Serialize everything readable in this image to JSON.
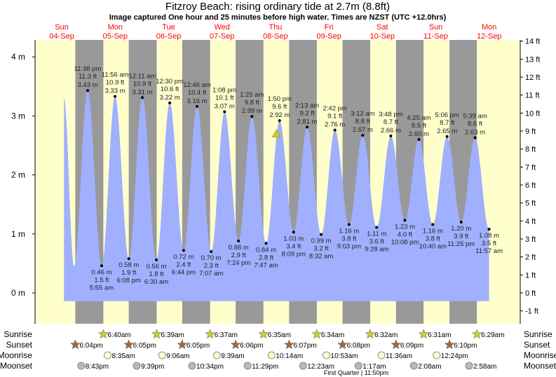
{
  "title": "Fitzroy Beach: rising  ordinary tide at 2.7m (8.8ft)",
  "subtitle": "Image captured One hour and 25 minutes before high water. Times are NZST (UTC +12.0hrs)",
  "days": [
    {
      "dow": "Sun",
      "date": "04-Sep"
    },
    {
      "dow": "Mon",
      "date": "05-Sep"
    },
    {
      "dow": "Tue",
      "date": "06-Sep"
    },
    {
      "dow": "Wed",
      "date": "07-Sep"
    },
    {
      "dow": "Thu",
      "date": "08-Sep"
    },
    {
      "dow": "Fri",
      "date": "09-Sep"
    },
    {
      "dow": "Sat",
      "date": "10-Sep"
    },
    {
      "dow": "Sun",
      "date": "11-Sep"
    },
    {
      "dow": "Mon",
      "date": "12-Sep"
    }
  ],
  "colors": {
    "day": "#ffffcc",
    "night": "#999999",
    "tide": "#a0b0ff",
    "day_labels": "#ff0000",
    "sunrise": "#cccc33",
    "sunset": "#aa6633",
    "moonrise": "#ffffcc",
    "moonset": "#bbbbaa",
    "current_marker": "#cccc22"
  },
  "chart_data": {
    "type": "area",
    "title": "Fitzroy Beach: rising  ordinary tide at 2.7m (8.8ft)",
    "y_left": {
      "unit": "m",
      "ticks": [
        "0 m",
        "1 m",
        "2 m",
        "3 m",
        "4 m"
      ],
      "values": [
        0,
        1,
        2,
        3,
        4
      ]
    },
    "y_right": {
      "unit": "ft",
      "ticks": [
        "-1 ft",
        "0 ft",
        "1 ft",
        "2 ft",
        "3 ft",
        "4 ft",
        "5 ft",
        "6 ft",
        "7 ft",
        "8 ft",
        "9 ft",
        "10 ft",
        "11 ft",
        "12 ft",
        "13 ft",
        "14 ft"
      ],
      "values": [
        -1,
        0,
        1,
        2,
        3,
        4,
        5,
        6,
        7,
        8,
        9,
        10,
        11,
        12,
        13,
        14
      ]
    },
    "current": {
      "height_m": 2.7,
      "height_ft": 8.8,
      "state": "rising"
    },
    "curve_start": [
      {
        "date": "04-Sep",
        "time": "1:00 pm",
        "m": 3.3
      },
      {
        "date": "04-Sep",
        "time": "5:30 pm",
        "m": 0.45
      }
    ],
    "extremes": [
      {
        "type": "high",
        "date": "04-Sep",
        "time": "11:38 pm",
        "ft": "11.3 ft",
        "m": 3.43
      },
      {
        "type": "low",
        "date": "05-Sep",
        "time": "5:55 am",
        "ft": "1.5 ft",
        "m": 0.46
      },
      {
        "type": "high",
        "date": "05-Sep",
        "time": "11:56 am",
        "ft": "10.9 ft",
        "m": 3.33
      },
      {
        "type": "low",
        "date": "05-Sep",
        "time": "6:08 pm",
        "ft": "1.9 ft",
        "m": 0.58
      },
      {
        "type": "high",
        "date": "06-Sep",
        "time": "12:11 am",
        "ft": "10.9 ft",
        "m": 3.31
      },
      {
        "type": "low",
        "date": "06-Sep",
        "time": "6:30 am",
        "ft": "1.8 ft",
        "m": 0.56
      },
      {
        "type": "high",
        "date": "06-Sep",
        "time": "12:30 pm",
        "ft": "10.6 ft",
        "m": 3.22
      },
      {
        "type": "low",
        "date": "06-Sep",
        "time": "6:44 pm",
        "ft": "2.4 ft",
        "m": 0.72
      },
      {
        "type": "high",
        "date": "07-Sep",
        "time": "12:46 am",
        "ft": "10.4 ft",
        "m": 3.16
      },
      {
        "type": "low",
        "date": "07-Sep",
        "time": "7:07 am",
        "ft": "2.3 ft",
        "m": 0.7
      },
      {
        "type": "high",
        "date": "07-Sep",
        "time": "1:08 pm",
        "ft": "10.1 ft",
        "m": 3.07
      },
      {
        "type": "low",
        "date": "07-Sep",
        "time": "7:24 pm",
        "ft": "2.9 ft",
        "m": 0.88
      },
      {
        "type": "high",
        "date": "08-Sep",
        "time": "1:25 am",
        "ft": "9.8 ft",
        "m": 2.99
      },
      {
        "type": "low",
        "date": "08-Sep",
        "time": "7:47 am",
        "ft": "2.8 ft",
        "m": 0.84
      },
      {
        "type": "high",
        "date": "08-Sep",
        "time": "1:50 pm",
        "ft": "9.6 ft",
        "m": 2.92
      },
      {
        "type": "low",
        "date": "08-Sep",
        "time": "8:09 pm",
        "ft": "3.4 ft",
        "m": 1.03
      },
      {
        "type": "high",
        "date": "09-Sep",
        "time": "2:13 am",
        "ft": "9.2 ft",
        "m": 2.81
      },
      {
        "type": "low",
        "date": "09-Sep",
        "time": "8:32 am",
        "ft": "3.2 ft",
        "m": 0.99
      },
      {
        "type": "high",
        "date": "09-Sep",
        "time": "2:42 pm",
        "ft": "9.1 ft",
        "m": 2.76
      },
      {
        "type": "low",
        "date": "09-Sep",
        "time": "9:03 pm",
        "ft": "3.8 ft",
        "m": 1.16
      },
      {
        "type": "high",
        "date": "10-Sep",
        "time": "3:12 am",
        "ft": "8.8 ft",
        "m": 2.67
      },
      {
        "type": "low",
        "date": "10-Sep",
        "time": "9:28 am",
        "ft": "3.6 ft",
        "m": 1.11
      },
      {
        "type": "high",
        "date": "10-Sep",
        "time": "3:48 pm",
        "ft": "8.7 ft",
        "m": 2.66
      },
      {
        "type": "low",
        "date": "10-Sep",
        "time": "10:08 pm",
        "ft": "4.0 ft",
        "m": 1.23
      },
      {
        "type": "high",
        "date": "11-Sep",
        "time": "4:25 am",
        "ft": "8.5 ft",
        "m": 2.6
      },
      {
        "type": "low",
        "date": "11-Sep",
        "time": "10:40 am",
        "ft": "3.8 ft",
        "m": 1.16
      },
      {
        "type": "high",
        "date": "11-Sep",
        "time": "5:06 pm",
        "ft": "8.7 ft",
        "m": 2.65
      },
      {
        "type": "low",
        "date": "11-Sep",
        "time": "11:25 pm",
        "ft": "3.9 ft",
        "m": 1.2
      },
      {
        "type": "high",
        "date": "12-Sep",
        "time": "5:39 am",
        "ft": "8.6 ft",
        "m": 2.63
      },
      {
        "type": "low",
        "date": "12-Sep",
        "time": "11:57 am",
        "ft": "3.5 ft",
        "m": 1.08
      }
    ],
    "grid": false
  },
  "rows": {
    "sunrise": {
      "label": "Sunrise",
      "events": [
        {
          "date": "05-Sep",
          "time": "6:40am"
        },
        {
          "date": "06-Sep",
          "time": "6:39am"
        },
        {
          "date": "07-Sep",
          "time": "6:37am"
        },
        {
          "date": "08-Sep",
          "time": "6:35am"
        },
        {
          "date": "09-Sep",
          "time": "6:34am"
        },
        {
          "date": "10-Sep",
          "time": "6:32am"
        },
        {
          "date": "11-Sep",
          "time": "6:31am"
        },
        {
          "date": "12-Sep",
          "time": "6:29am"
        }
      ]
    },
    "sunset": {
      "label": "Sunset",
      "events": [
        {
          "date": "04-Sep",
          "time": "6:04pm"
        },
        {
          "date": "05-Sep",
          "time": "6:05pm"
        },
        {
          "date": "06-Sep",
          "time": "6:05pm"
        },
        {
          "date": "07-Sep",
          "time": "6:06pm"
        },
        {
          "date": "08-Sep",
          "time": "6:07pm"
        },
        {
          "date": "09-Sep",
          "time": "6:08pm"
        },
        {
          "date": "10-Sep",
          "time": "6:09pm"
        },
        {
          "date": "11-Sep",
          "time": "6:10pm"
        }
      ]
    },
    "moonrise": {
      "label": "Moonrise",
      "events": [
        {
          "date": "05-Sep",
          "time": "8:35am"
        },
        {
          "date": "06-Sep",
          "time": "9:06am"
        },
        {
          "date": "07-Sep",
          "time": "9:39am"
        },
        {
          "date": "08-Sep",
          "time": "10:14am"
        },
        {
          "date": "09-Sep",
          "time": "10:53am"
        },
        {
          "date": "10-Sep",
          "time": "11:36am"
        },
        {
          "date": "11-Sep",
          "time": "12:24pm"
        }
      ]
    },
    "moonset": {
      "label": "Moonset",
      "events": [
        {
          "date": "04-Sep",
          "time": "8:43pm"
        },
        {
          "date": "05-Sep",
          "time": "9:39pm"
        },
        {
          "date": "06-Sep",
          "time": "10:34pm"
        },
        {
          "date": "07-Sep",
          "time": "11:29pm"
        },
        {
          "date": "09-Sep",
          "time": "12:23am"
        },
        {
          "date": "10-Sep",
          "time": "1:17am"
        },
        {
          "date": "11-Sep",
          "time": "2:08am"
        },
        {
          "date": "12-Sep",
          "time": "2:58am"
        }
      ]
    }
  },
  "moon_phase": "First Quarter | 11:50pm"
}
